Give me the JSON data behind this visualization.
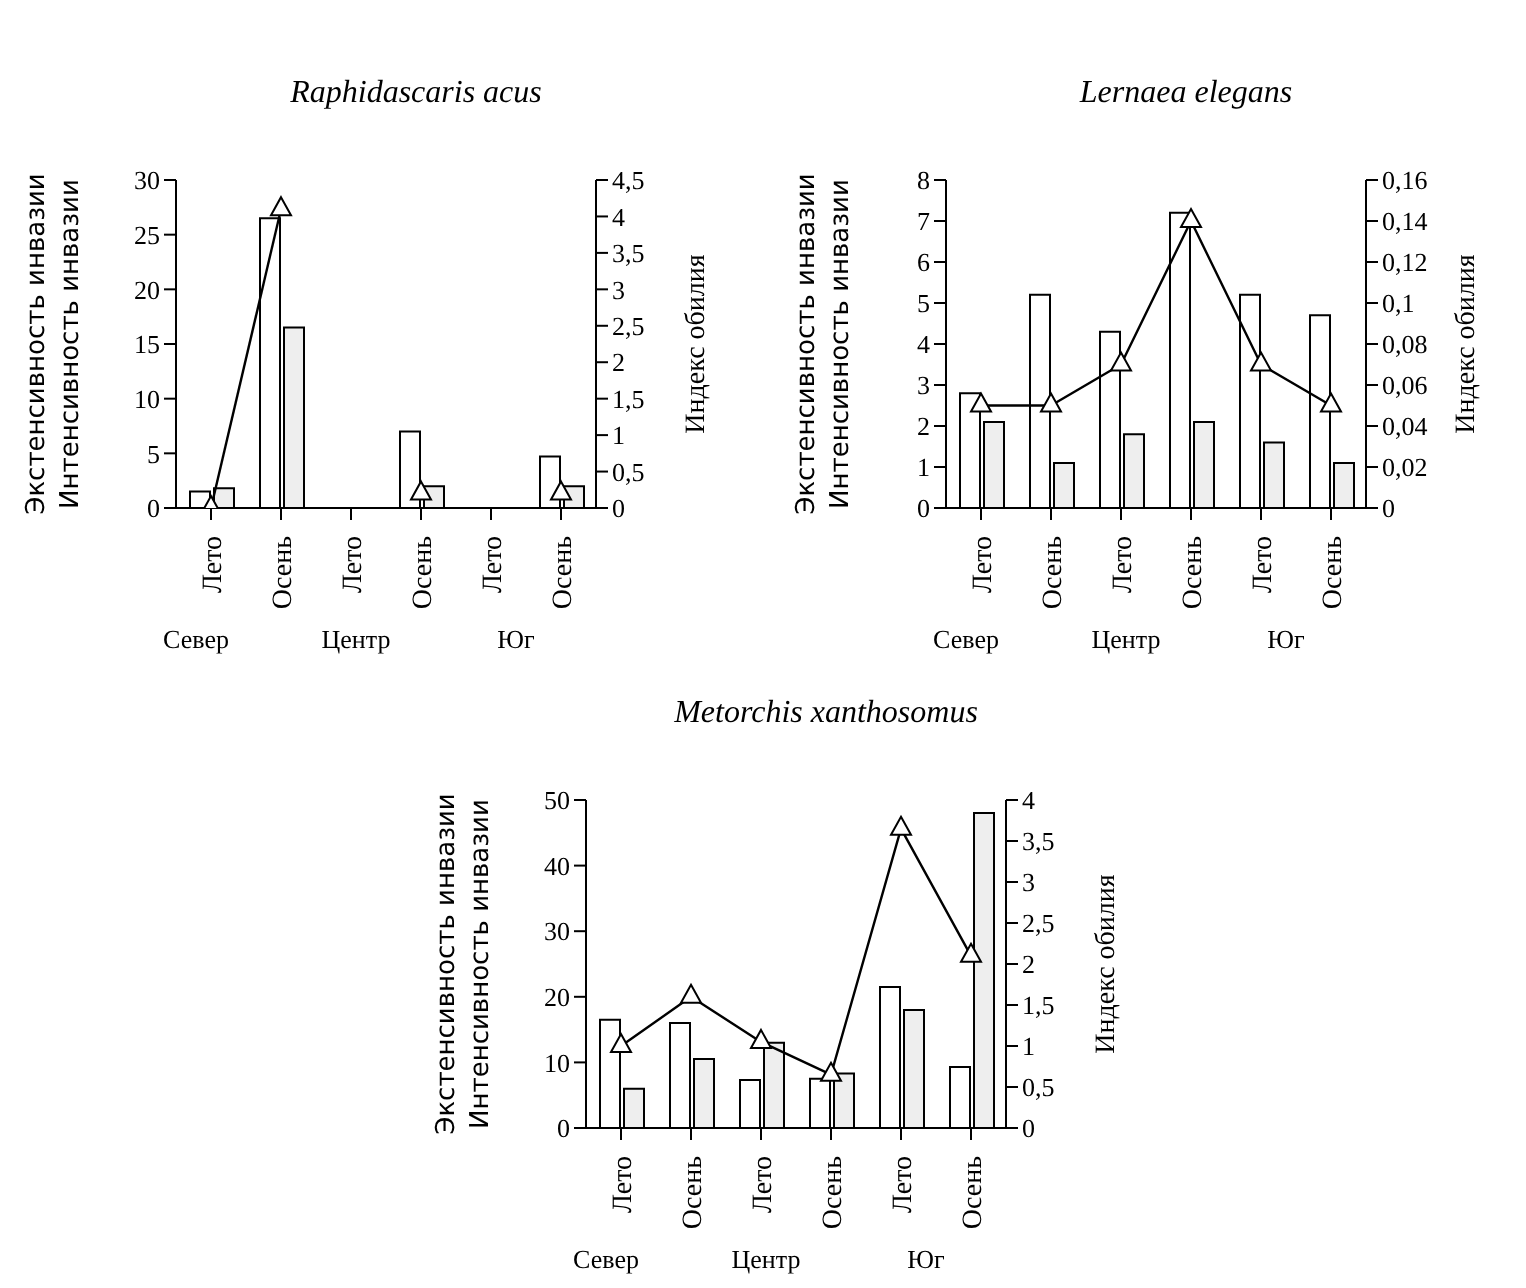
{
  "chart_data": [
    {
      "type": "bar",
      "title": "Raphidascaris acus",
      "categories": [
        "Лето",
        "Осень",
        "Лето",
        "Осень",
        "Лето",
        "Осень"
      ],
      "ylabel": "Экстенсивность инвазии\nИнтенсивность инвазии",
      "y2label": "Индекс обилия",
      "ylim": [
        0,
        30
      ],
      "yticks": [
        0,
        5,
        10,
        15,
        20,
        25,
        30
      ],
      "y2lim": [
        0,
        4.5
      ],
      "y2ticks": [
        0,
        {
          "value": 0.5,
          "label": "0,5"
        },
        1,
        {
          "value": 1.5,
          "label": "1,5"
        },
        2,
        {
          "value": 2.5,
          "label": "2,5"
        },
        3,
        {
          "value": 3.5,
          "label": "3,5"
        },
        4,
        {
          "value": 4.5,
          "label": "4,5"
        }
      ],
      "marker": "triangle",
      "annotations": [
        "Север",
        "Центр",
        "Юг"
      ],
      "series": [
        {
          "color": "#ffffff",
          "values": [
            1.5,
            26.5,
            0,
            7,
            0,
            4.7
          ]
        },
        {
          "color": "#eeeeee",
          "values": [
            1.8,
            16.5,
            0,
            2,
            0,
            2
          ]
        },
        {
          "type": "line",
          "axis": "y2",
          "color": "#000000",
          "values": [
            0,
            4.1,
            null,
            0.2,
            null,
            0.2
          ]
        }
      ]
    },
    {
      "type": "bar",
      "title": "Lernaea elegans",
      "categories": [
        "Лето",
        "Осень",
        "Лето",
        "Осень",
        "Лето",
        "Осень"
      ],
      "ylabel": "Экстенсивность инвазии\nИнтенсивность инвазии",
      "y2label": "Индекс обилия",
      "ylim": [
        0,
        8
      ],
      "yticks": [
        0,
        1,
        2,
        3,
        4,
        5,
        6,
        7,
        8
      ],
      "y2lim": [
        0,
        0.16
      ],
      "y2ticks": [
        0,
        {
          "value": 0.02,
          "label": "0,02"
        },
        {
          "value": 0.04,
          "label": "0,04"
        },
        {
          "value": 0.06,
          "label": "0,06"
        },
        {
          "value": 0.08,
          "label": "0,08"
        },
        {
          "value": 0.1,
          "label": "0,1"
        },
        {
          "value": 0.12,
          "label": "0,12"
        },
        {
          "value": 0.14,
          "label": "0,14"
        },
        {
          "value": 0.16,
          "label": "0,16"
        }
      ],
      "marker": "triangle",
      "annotations": [
        "Север",
        "Центр",
        "Юг"
      ],
      "series": [
        {
          "color": "#ffffff",
          "values": [
            2.8,
            5.2,
            4.3,
            7.2,
            5.2,
            4.7
          ]
        },
        {
          "color": "#eeeeee",
          "values": [
            2.1,
            1.1,
            1.8,
            2.1,
            1.6,
            1.1
          ]
        },
        {
          "type": "line",
          "axis": "y2",
          "color": "#000000",
          "values": [
            0.05,
            0.05,
            0.07,
            0.14,
            0.07,
            0.05
          ]
        }
      ]
    },
    {
      "type": "bar",
      "title": "Metorchis xanthosomus",
      "categories": [
        "Лето",
        "Осень",
        "Лето",
        "Осень",
        "Лето",
        "Осень"
      ],
      "ylabel": "Экстенсивность инвазии\nИнтенсивность инвазии",
      "y2label": "Индекс обилия",
      "ylim": [
        0,
        50
      ],
      "yticks": [
        0,
        10,
        20,
        30,
        40,
        50
      ],
      "y2lim": [
        0,
        4
      ],
      "y2ticks": [
        0,
        {
          "value": 0.5,
          "label": "0,5"
        },
        1,
        {
          "value": 1.5,
          "label": "1,5"
        },
        2,
        {
          "value": 2.5,
          "label": "2,5"
        },
        3,
        {
          "value": 3.5,
          "label": "3,5"
        },
        4
      ],
      "marker": "triangle",
      "annotations": [
        "Север",
        "Центр",
        "Юг"
      ],
      "series": [
        {
          "color": "#ffffff",
          "values": [
            16.5,
            16,
            7.3,
            7.5,
            21.5,
            9.3
          ]
        },
        {
          "color": "#eeeeee",
          "values": [
            6,
            10.5,
            13,
            8.3,
            18,
            48
          ]
        },
        {
          "type": "line",
          "axis": "y2",
          "color": "#000000",
          "values": [
            1,
            1.6,
            1.05,
            0.65,
            3.65,
            2.1
          ]
        }
      ]
    }
  ]
}
